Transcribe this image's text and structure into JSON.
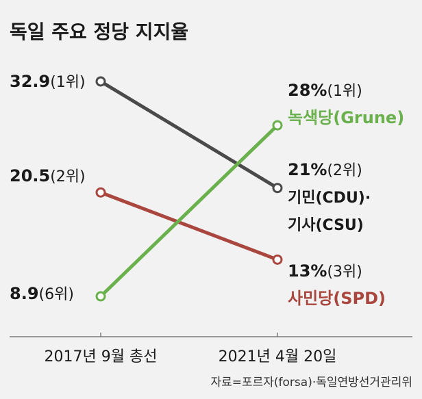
{
  "chart_data": {
    "type": "line",
    "title": "독일 주요 정당 지지율",
    "x": [
      "2017년 9월 총선",
      "2021년 4월 20일"
    ],
    "series": [
      {
        "id": "cdu",
        "color": "#4a4a4a",
        "values": [
          32.9,
          21
        ],
        "start_label": {
          "value": "32.9",
          "rank": "(1위)"
        },
        "end_label": {
          "value": "21%",
          "rank": "(2위)",
          "name_line1": "기민(CDU)·",
          "name_line2": "기사(CSU)"
        }
      },
      {
        "id": "green",
        "color": "#6ab04c",
        "values": [
          8.9,
          28
        ],
        "start_label": {
          "value": "8.9",
          "rank": "(6위)"
        },
        "end_label": {
          "value": "28%",
          "rank": "(1위)",
          "name_line1": "녹색당(Grune)"
        }
      },
      {
        "id": "spd",
        "color": "#a9473f",
        "values": [
          20.5,
          13
        ],
        "start_label": {
          "value": "20.5",
          "rank": "(2위)"
        },
        "end_label": {
          "value": "13%",
          "rank": "(3위)",
          "name_line1": "사민당(SPD)"
        }
      }
    ],
    "grid": false,
    "legend": "none"
  },
  "source": "자료=포르자(forsa)·독일연방선거관리위"
}
